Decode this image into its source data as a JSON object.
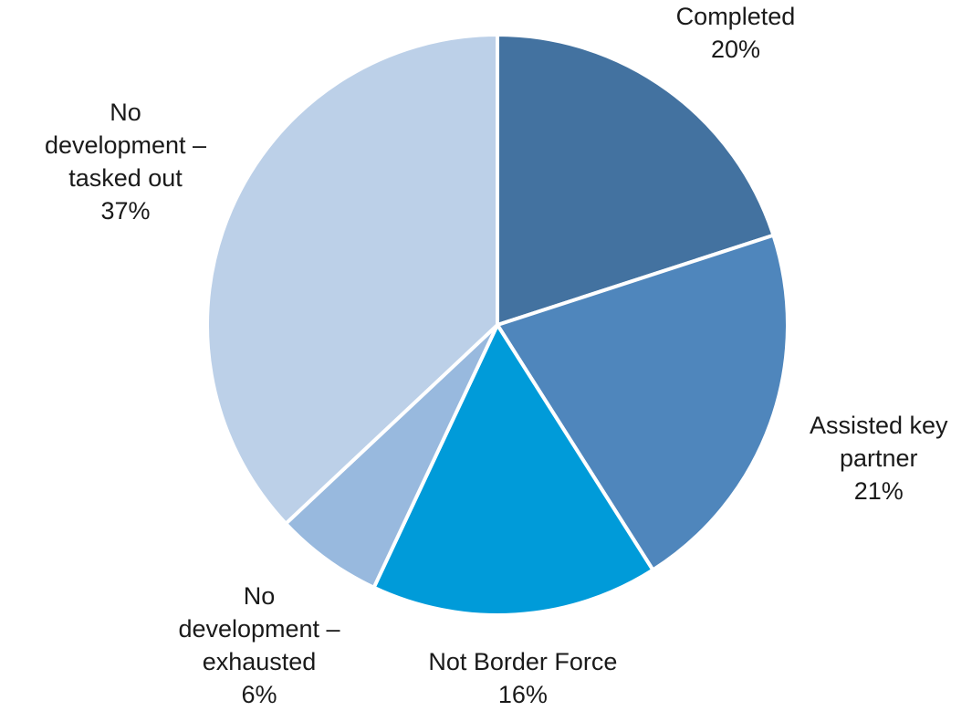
{
  "chart_data": {
    "type": "pie",
    "title": "",
    "slices": [
      {
        "lines": [
          "Completed"
        ],
        "pct_label": "20%",
        "value": 20,
        "color": "#4372a0"
      },
      {
        "lines": [
          "Assisted key",
          "partner"
        ],
        "pct_label": "21%",
        "value": 21,
        "color": "#4f86bc"
      },
      {
        "lines": [
          "Not Border Force"
        ],
        "pct_label": "16%",
        "value": 16,
        "color": "#009bd9"
      },
      {
        "lines": [
          "No",
          "development –",
          "exhausted"
        ],
        "pct_label": "6%",
        "value": 6,
        "color": "#98b9de"
      },
      {
        "lines": [
          "No",
          "development –",
          "tasked out"
        ],
        "pct_label": "37%",
        "value": 37,
        "color": "#bcd0e8"
      }
    ],
    "start_angle": "12 o'clock",
    "direction": "clockwise",
    "slice_border_color": "#ffffff",
    "legend": "none"
  }
}
